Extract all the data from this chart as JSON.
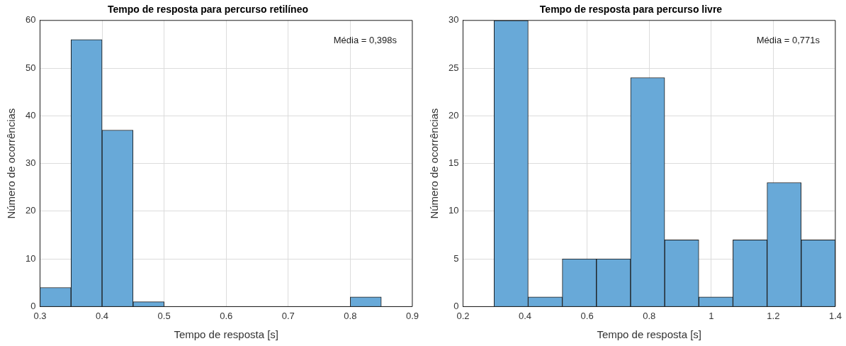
{
  "chart_data": [
    {
      "type": "histogram",
      "title": "Tempo de resposta para percurso retilíneo",
      "xlabel": "Tempo de resposta [s]",
      "ylabel": "Número de ocorrências",
      "bins": [
        0.3,
        0.35,
        0.4,
        0.45,
        0.5,
        0.55,
        0.6,
        0.65,
        0.7,
        0.75,
        0.8,
        0.85
      ],
      "values": [
        4,
        56,
        37,
        1,
        0,
        0,
        0,
        0,
        0,
        0,
        2
      ],
      "color": "#68a9d8",
      "xlim": [
        0.3,
        0.9
      ],
      "xticks": [
        0.3,
        0.4,
        0.5,
        0.6,
        0.7,
        0.8,
        0.9
      ],
      "ylim": [
        0,
        60
      ],
      "yticks": [
        0,
        10,
        20,
        30,
        40,
        50,
        60
      ],
      "grid": true,
      "legend": false,
      "annotations": [
        "Média = 0,398s"
      ]
    },
    {
      "type": "histogram",
      "title": "Tempo de resposta para percurso livre",
      "xlabel": "Tempo de resposta [s]",
      "ylabel": "Número de ocorrências",
      "bins": [
        0.3,
        0.41,
        0.52,
        0.63,
        0.74,
        0.85,
        0.96,
        1.07,
        1.18,
        1.29,
        1.4
      ],
      "values": [
        30,
        1,
        5,
        5,
        24,
        7,
        1,
        7,
        13,
        7
      ],
      "color": "#68a9d8",
      "xlim": [
        0.2,
        1.4
      ],
      "xticks": [
        0.2,
        0.4,
        0.6,
        0.8,
        1,
        1.2,
        1.4
      ],
      "ylim": [
        0,
        30
      ],
      "yticks": [
        0,
        5,
        10,
        15,
        20,
        25,
        30
      ],
      "grid": true,
      "legend": false,
      "annotations": [
        "Média = 0,771s"
      ]
    }
  ]
}
